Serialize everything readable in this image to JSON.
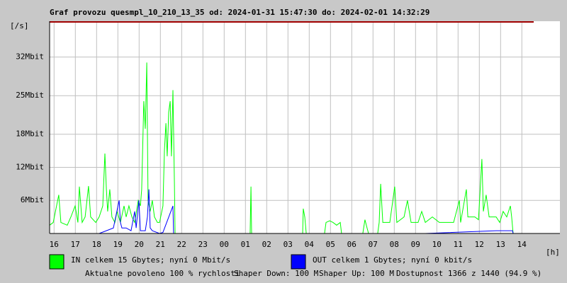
{
  "chart_data": {
    "type": "line",
    "title": "Graf provozu quesmpl_10_210_13_35 od: 2024-01-31 15:47:30 do: 2024-02-01 14:32:29",
    "y_label": "[/s]",
    "x_label": "[h]",
    "xlim": [
      15.79,
      39.79
    ],
    "ylim": [
      0,
      38.5
    ],
    "xticks": [
      16,
      17,
      18,
      19,
      20,
      21,
      22,
      23,
      {
        "value": 24,
        "label": "00"
      },
      {
        "value": 25,
        "label": "01"
      },
      {
        "value": 26,
        "label": "02"
      },
      {
        "value": 27,
        "label": "03"
      },
      {
        "value": 28,
        "label": "04"
      },
      {
        "value": 29,
        "label": "05"
      },
      {
        "value": 30,
        "label": "06"
      },
      {
        "value": 31,
        "label": "07"
      },
      {
        "value": 32,
        "label": "08"
      },
      {
        "value": 33,
        "label": "09"
      },
      {
        "value": 34,
        "label": "10"
      },
      {
        "value": 35,
        "label": "11"
      },
      {
        "value": 36,
        "label": "12"
      },
      {
        "value": 37,
        "label": "13"
      },
      {
        "value": 38,
        "label": "14"
      }
    ],
    "yticks": [
      {
        "value": 6,
        "label": "6Mbit"
      },
      {
        "value": 12,
        "label": "12Mbit"
      },
      {
        "value": 18,
        "label": "18Mbit"
      },
      {
        "value": 25,
        "label": "25Mbit"
      },
      {
        "value": 32,
        "label": "32Mbit"
      }
    ],
    "grid": true,
    "series": [
      {
        "name": "IN celkem 15 Gbytes; nyní 0 Mbit/s",
        "color": "#00ff00",
        "x": [
          15.79,
          15.96,
          16.22,
          16.32,
          16.62,
          16.79,
          16.99,
          17.12,
          17.19,
          17.32,
          17.46,
          17.62,
          17.72,
          17.96,
          18.12,
          18.29,
          18.39,
          18.46,
          18.52,
          18.62,
          18.72,
          18.86,
          18.96,
          19.12,
          19.29,
          19.39,
          19.52,
          19.66,
          19.79,
          19.96,
          20.06,
          20.12,
          20.22,
          20.29,
          20.36,
          20.42,
          20.52,
          20.62,
          20.72,
          20.86,
          20.96,
          21.12,
          21.19,
          21.26,
          21.32,
          21.39,
          21.46,
          21.52,
          21.59,
          21.66,
          21.69,
          25.22,
          25.26,
          25.29,
          27.69,
          27.72,
          27.79,
          27.86,
          28.72,
          28.79,
          28.96,
          29.12,
          29.29,
          29.46,
          29.52,
          30.52,
          30.62,
          30.72,
          30.79,
          31.22,
          31.29,
          31.36,
          31.46,
          31.62,
          31.79,
          32.02,
          32.12,
          32.46,
          32.62,
          32.79,
          33.12,
          33.29,
          33.46,
          33.79,
          34.12,
          34.46,
          34.79,
          35.06,
          35.12,
          35.39,
          35.46,
          35.79,
          35.96,
          36.12,
          36.19,
          36.32,
          36.46,
          36.79,
          36.96,
          37.12,
          37.29,
          37.46,
          37.52,
          37.59
        ],
        "values": [
          1.5,
          2,
          7,
          2,
          1.5,
          3,
          5,
          2,
          8.5,
          2,
          3,
          8.6,
          3,
          2,
          3,
          5,
          14.5,
          8,
          4,
          8,
          3,
          2,
          4,
          2,
          5,
          3,
          5,
          3,
          2,
          6,
          5,
          8,
          24,
          19,
          31,
          6,
          4,
          6,
          3,
          2,
          2,
          5,
          15,
          20,
          14,
          22,
          24,
          14,
          26,
          9,
          0,
          0,
          8.5,
          0,
          0,
          4.5,
          3,
          0,
          0,
          2,
          2.3,
          2,
          1.5,
          2,
          0,
          0,
          2.5,
          1,
          0,
          0,
          2,
          9,
          2,
          2,
          2,
          8.5,
          2,
          3,
          6,
          2,
          2,
          4,
          2,
          3,
          2,
          2,
          2,
          6,
          2,
          8,
          3,
          3,
          2.5,
          13.5,
          4,
          7,
          3,
          3,
          2,
          4,
          3,
          5,
          3,
          0
        ]
      },
      {
        "name": "OUT celkem 1 Gbytes; nyní 0 kbit/s",
        "color": "#0000ff",
        "x": [
          15.79,
          18.12,
          18.46,
          18.79,
          19.06,
          19.12,
          19.19,
          19.39,
          19.62,
          19.79,
          19.86,
          19.99,
          20.06,
          20.29,
          20.39,
          20.46,
          20.52,
          20.62,
          20.96,
          21.12,
          21.59,
          21.62,
          21.66,
          33.46,
          36.79,
          37.56,
          37.59
        ],
        "values": [
          0,
          0,
          0.5,
          1,
          6,
          2,
          1,
          1,
          0.5,
          4,
          1,
          6,
          0.5,
          0.5,
          3,
          8,
          1,
          0.5,
          0,
          0.2,
          5,
          0,
          0,
          0,
          0.5,
          0.5,
          0
        ]
      }
    ],
    "annotations": [
      {
        "text": "Aktualne povoleno 100 % rychlosti",
        "color": "#ff0000"
      },
      {
        "text": "Shaper Down: 100 M",
        "color": "#000000"
      },
      {
        "text": "Shaper Up: 100 M",
        "color": "#800080"
      },
      {
        "text": "Dostupnost 1366 z 1440 (94.9 %)",
        "color": "#000000"
      }
    ]
  }
}
